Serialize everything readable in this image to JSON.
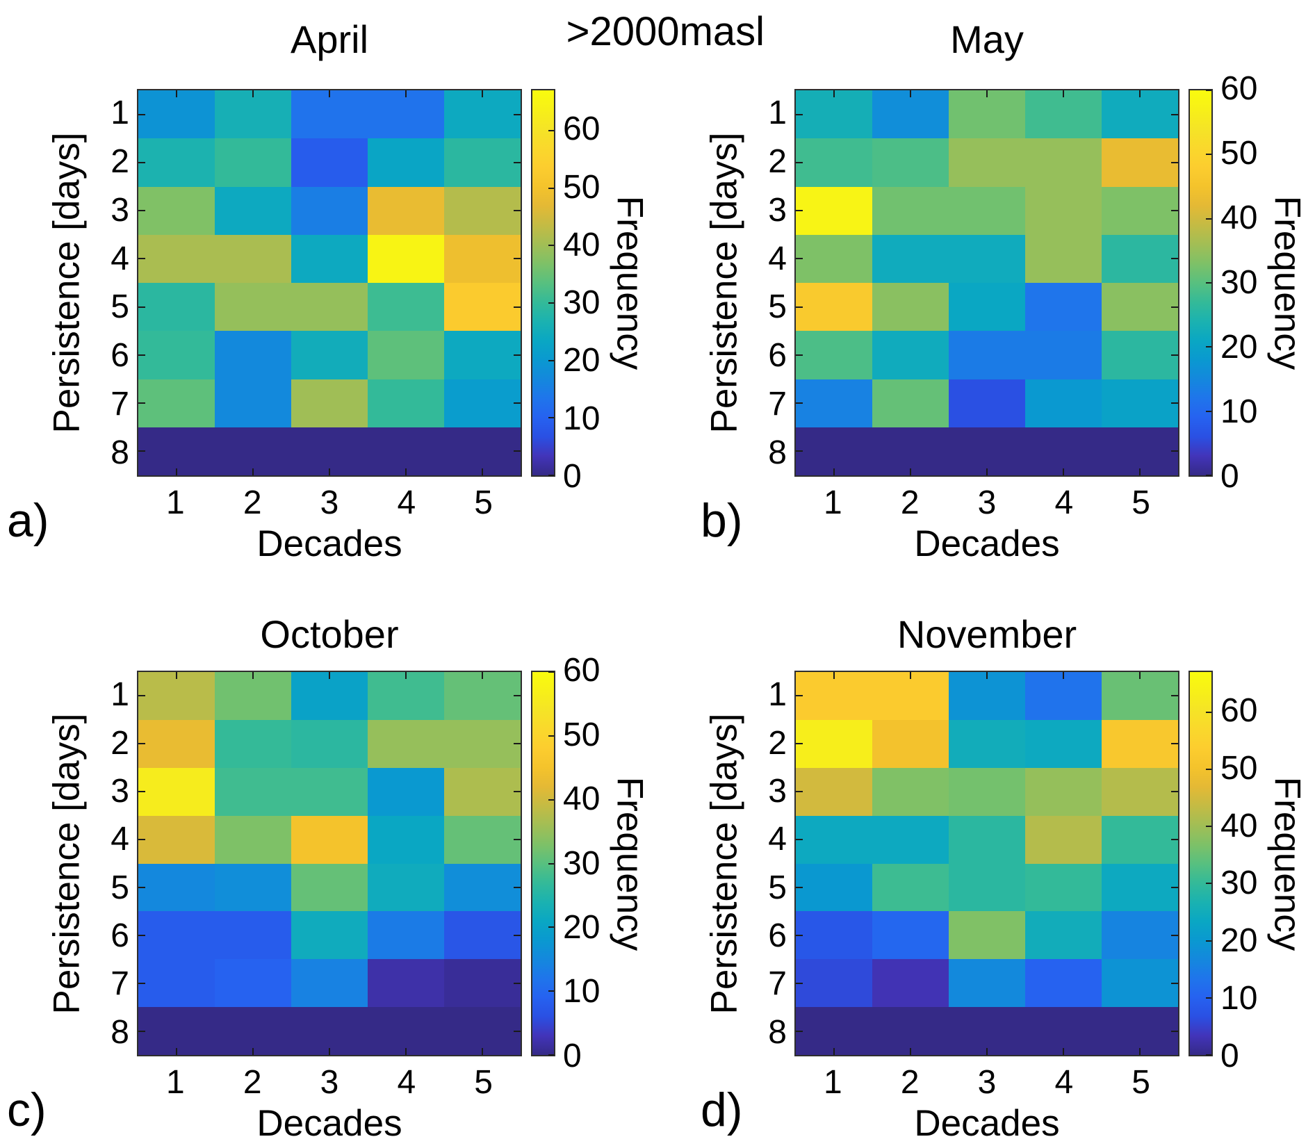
{
  "figure": {
    "title": ">2000masl"
  },
  "chart_data": [
    {
      "type": "heatmap",
      "panel_label": "a)",
      "title": "April",
      "xlabel": "Decades",
      "ylabel": "Persistence [days]",
      "colorbar_label": "Frequency",
      "x_categories": [
        "1",
        "2",
        "3",
        "4",
        "5"
      ],
      "y_categories": [
        "1",
        "2",
        "3",
        "4",
        "5",
        "6",
        "7",
        "8"
      ],
      "colorbar_ticks": [
        0,
        10,
        20,
        30,
        40,
        50,
        60
      ],
      "colorbar_range": [
        0,
        67
      ],
      "colormap": "parula",
      "grid": false,
      "values": [
        [
          19,
          26,
          13,
          13,
          24
        ],
        [
          27,
          30,
          9,
          23,
          29
        ],
        [
          37,
          24,
          15,
          48,
          42
        ],
        [
          41,
          41,
          24,
          65,
          49
        ],
        [
          29,
          39,
          39,
          31,
          53
        ],
        [
          30,
          17,
          25,
          34,
          24
        ],
        [
          34,
          17,
          40,
          30,
          21
        ],
        [
          0,
          0,
          0,
          0,
          0
        ]
      ]
    },
    {
      "type": "heatmap",
      "panel_label": "b)",
      "title": "May",
      "xlabel": "Decades",
      "ylabel": "Persistence [days]",
      "colorbar_label": "Frequency",
      "x_categories": [
        "1",
        "2",
        "3",
        "4",
        "5"
      ],
      "y_categories": [
        "1",
        "2",
        "3",
        "4",
        "5",
        "6",
        "7",
        "8"
      ],
      "colorbar_ticks": [
        0,
        10,
        20,
        30,
        40,
        50,
        60
      ],
      "colorbar_range": [
        0,
        60
      ],
      "colormap": "parula",
      "grid": false,
      "values": [
        [
          23,
          16,
          32,
          28,
          22
        ],
        [
          28,
          29,
          35,
          35,
          43
        ],
        [
          58,
          32,
          32,
          35,
          33
        ],
        [
          33,
          22,
          22,
          35,
          26
        ],
        [
          47,
          34,
          21,
          12,
          34
        ],
        [
          29,
          22,
          13,
          13,
          26
        ],
        [
          14,
          31,
          6,
          18,
          20
        ],
        [
          0,
          0,
          0,
          0,
          0
        ]
      ]
    },
    {
      "type": "heatmap",
      "panel_label": "c)",
      "title": "October",
      "xlabel": "Decades",
      "ylabel": "Persistence [days]",
      "colorbar_label": "Frequency",
      "x_categories": [
        "1",
        "2",
        "3",
        "4",
        "5"
      ],
      "y_categories": [
        "1",
        "2",
        "3",
        "4",
        "5",
        "6",
        "7",
        "8"
      ],
      "colorbar_ticks": [
        0,
        10,
        20,
        30,
        40,
        50,
        60
      ],
      "colorbar_range": [
        0,
        60
      ],
      "colormap": "parula",
      "grid": false,
      "values": [
        [
          38,
          32,
          20,
          28,
          31
        ],
        [
          43,
          27,
          26,
          35,
          35
        ],
        [
          56,
          28,
          28,
          18,
          37
        ],
        [
          41,
          33,
          45,
          21,
          31
        ],
        [
          15,
          16,
          31,
          22,
          16
        ],
        [
          8,
          8,
          22,
          13,
          7
        ],
        [
          8,
          9,
          14,
          2,
          1
        ],
        [
          0,
          0,
          0,
          0,
          0
        ]
      ]
    },
    {
      "type": "heatmap",
      "panel_label": "d)",
      "title": "November",
      "xlabel": "Decades",
      "ylabel": "Persistence [days]",
      "colorbar_label": "Frequency",
      "x_categories": [
        "1",
        "2",
        "3",
        "4",
        "5"
      ],
      "y_categories": [
        "1",
        "2",
        "3",
        "4",
        "5",
        "6",
        "7",
        "8"
      ],
      "colorbar_ticks": [
        0,
        10,
        20,
        30,
        40,
        50,
        60
      ],
      "colorbar_range": [
        0,
        67
      ],
      "colormap": "parula",
      "grid": false,
      "values": [
        [
          53,
          53,
          19,
          13,
          35
        ],
        [
          63,
          50,
          25,
          24,
          52
        ],
        [
          45,
          37,
          36,
          39,
          42
        ],
        [
          24,
          24,
          29,
          42,
          30
        ],
        [
          20,
          31,
          29,
          30,
          24
        ],
        [
          8,
          11,
          37,
          25,
          16
        ],
        [
          6,
          3,
          17,
          10,
          19
        ],
        [
          0,
          0,
          0,
          0,
          0
        ]
      ]
    }
  ],
  "colormap": {
    "name": "parula",
    "stops": [
      [
        0.0,
        53,
        42,
        135
      ],
      [
        0.05,
        66,
        52,
        185
      ],
      [
        0.1,
        42,
        80,
        227
      ],
      [
        0.15,
        38,
        98,
        240
      ],
      [
        0.2,
        31,
        117,
        235
      ],
      [
        0.25,
        20,
        136,
        221
      ],
      [
        0.3,
        10,
        153,
        208
      ],
      [
        0.35,
        10,
        167,
        195
      ],
      [
        0.4,
        27,
        178,
        176
      ],
      [
        0.45,
        52,
        186,
        152
      ],
      [
        0.5,
        88,
        192,
        127
      ],
      [
        0.55,
        126,
        193,
        103
      ],
      [
        0.6,
        162,
        190,
        85
      ],
      [
        0.65,
        196,
        187,
        68
      ],
      [
        0.7,
        228,
        185,
        53
      ],
      [
        0.75,
        244,
        195,
        44
      ],
      [
        0.8,
        252,
        205,
        47
      ],
      [
        0.85,
        250,
        216,
        44
      ],
      [
        0.9,
        245,
        228,
        38
      ],
      [
        0.95,
        247,
        240,
        24
      ],
      [
        1.0,
        249,
        251,
        14
      ]
    ]
  }
}
